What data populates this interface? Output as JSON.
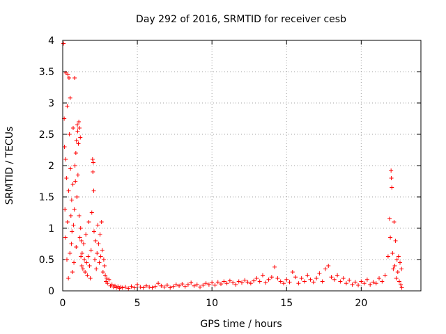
{
  "chart_data": {
    "type": "scatter",
    "title": "Day 292 of 2016, SRMTID for receiver cesb",
    "xlabel": "GPS time / hours",
    "ylabel": "SRMTID / TECUs",
    "xlim": [
      0,
      24
    ],
    "ylim": [
      0,
      4
    ],
    "xticks": [
      0,
      5,
      10,
      15,
      20
    ],
    "xtick_labels": [
      "0",
      "5",
      "10",
      "15",
      "20"
    ],
    "yticks": [
      0,
      0.5,
      1,
      1.5,
      2,
      2.5,
      3,
      3.5,
      4
    ],
    "ytick_labels": [
      "0",
      "0.5",
      "1",
      "1.5",
      "2",
      "2.5",
      "3",
      "3.5",
      "4"
    ],
    "grid": true,
    "marker": "+",
    "series": [
      {
        "name": "SRMTID",
        "color": "#ff0000",
        "points": [
          [
            0.05,
            3.95
          ],
          [
            0.1,
            2.75
          ],
          [
            0.12,
            2.3
          ],
          [
            0.15,
            1.3
          ],
          [
            0.18,
            0.85
          ],
          [
            0.2,
            2.1
          ],
          [
            0.22,
            3.48
          ],
          [
            0.25,
            1.8
          ],
          [
            0.28,
            0.5
          ],
          [
            0.3,
            2.95
          ],
          [
            0.32,
            1.1
          ],
          [
            0.35,
            3.45
          ],
          [
            0.38,
            0.2
          ],
          [
            0.4,
            1.6
          ],
          [
            0.42,
            3.4
          ],
          [
            0.45,
            2.5
          ],
          [
            0.48,
            0.6
          ],
          [
            0.5,
            3.08
          ],
          [
            0.52,
            1.95
          ],
          [
            0.55,
            1.2
          ],
          [
            0.58,
            0.75
          ],
          [
            0.6,
            1.45
          ],
          [
            0.62,
            0.95
          ],
          [
            0.65,
            0.3
          ],
          [
            0.68,
            1.7
          ],
          [
            0.7,
            2.6
          ],
          [
            0.72,
            1.05
          ],
          [
            0.75,
            0.45
          ],
          [
            0.78,
            1.3
          ],
          [
            0.8,
            3.4
          ],
          [
            0.82,
            2.0
          ],
          [
            0.85,
            1.75
          ],
          [
            0.88,
            2.2
          ],
          [
            0.9,
            0.7
          ],
          [
            0.92,
            2.4
          ],
          [
            0.95,
            1.5
          ],
          [
            0.98,
            2.65
          ],
          [
            1.0,
            2.55
          ],
          [
            1.02,
            1.85
          ],
          [
            1.05,
            2.35
          ],
          [
            1.08,
            2.7
          ],
          [
            1.1,
            1.2
          ],
          [
            1.12,
            2.6
          ],
          [
            1.15,
            0.85
          ],
          [
            1.18,
            2.45
          ],
          [
            1.2,
            1.0
          ],
          [
            1.22,
            0.55
          ],
          [
            1.25,
            0.8
          ],
          [
            1.28,
            0.4
          ],
          [
            1.3,
            0.6
          ],
          [
            1.35,
            0.35
          ],
          [
            1.4,
            0.75
          ],
          [
            1.45,
            0.5
          ],
          [
            1.5,
            0.3
          ],
          [
            1.55,
            0.9
          ],
          [
            1.6,
            0.45
          ],
          [
            1.65,
            0.25
          ],
          [
            1.7,
            0.55
          ],
          [
            1.75,
            1.1
          ],
          [
            1.8,
            0.4
          ],
          [
            1.85,
            0.2
          ],
          [
            1.9,
            0.65
          ],
          [
            1.95,
            1.25
          ],
          [
            2.0,
            2.1
          ],
          [
            2.02,
            1.9
          ],
          [
            2.05,
            2.05
          ],
          [
            2.08,
            1.6
          ],
          [
            2.1,
            0.95
          ],
          [
            2.15,
            0.5
          ],
          [
            2.2,
            0.8
          ],
          [
            2.25,
            0.35
          ],
          [
            2.3,
            0.6
          ],
          [
            2.35,
            1.05
          ],
          [
            2.4,
            0.75
          ],
          [
            2.45,
            0.45
          ],
          [
            2.5,
            0.9
          ],
          [
            2.55,
            0.55
          ],
          [
            2.6,
            1.1
          ],
          [
            2.65,
            0.65
          ],
          [
            2.7,
            0.3
          ],
          [
            2.75,
            0.5
          ],
          [
            2.8,
            0.4
          ],
          [
            2.85,
            0.25
          ],
          [
            2.9,
            0.15
          ],
          [
            2.95,
            0.2
          ],
          [
            3.0,
            0.12
          ],
          [
            3.1,
            0.18
          ],
          [
            3.2,
            0.08
          ],
          [
            3.3,
            0.1
          ],
          [
            3.4,
            0.06
          ],
          [
            3.5,
            0.08
          ],
          [
            3.6,
            0.05
          ],
          [
            3.7,
            0.07
          ],
          [
            3.8,
            0.04
          ],
          [
            3.9,
            0.06
          ],
          [
            4.0,
            0.05
          ],
          [
            4.2,
            0.06
          ],
          [
            4.4,
            0.04
          ],
          [
            4.6,
            0.07
          ],
          [
            4.8,
            0.05
          ],
          [
            5.0,
            0.1
          ],
          [
            5.2,
            0.06
          ],
          [
            5.4,
            0.05
          ],
          [
            5.6,
            0.08
          ],
          [
            5.8,
            0.06
          ],
          [
            6.0,
            0.05
          ],
          [
            6.2,
            0.07
          ],
          [
            6.4,
            0.12
          ],
          [
            6.6,
            0.08
          ],
          [
            6.8,
            0.06
          ],
          [
            7.0,
            0.09
          ],
          [
            7.2,
            0.05
          ],
          [
            7.4,
            0.07
          ],
          [
            7.6,
            0.1
          ],
          [
            7.8,
            0.08
          ],
          [
            8.0,
            0.11
          ],
          [
            8.2,
            0.07
          ],
          [
            8.4,
            0.1
          ],
          [
            8.6,
            0.13
          ],
          [
            8.8,
            0.08
          ],
          [
            9.0,
            0.1
          ],
          [
            9.2,
            0.06
          ],
          [
            9.4,
            0.09
          ],
          [
            9.6,
            0.12
          ],
          [
            9.8,
            0.1
          ],
          [
            10.0,
            0.13
          ],
          [
            10.2,
            0.09
          ],
          [
            10.4,
            0.14
          ],
          [
            10.6,
            0.11
          ],
          [
            10.8,
            0.15
          ],
          [
            11.0,
            0.12
          ],
          [
            11.2,
            0.16
          ],
          [
            11.4,
            0.13
          ],
          [
            11.6,
            0.1
          ],
          [
            11.8,
            0.15
          ],
          [
            12.0,
            0.13
          ],
          [
            12.2,
            0.17
          ],
          [
            12.4,
            0.14
          ],
          [
            12.6,
            0.12
          ],
          [
            12.8,
            0.16
          ],
          [
            13.0,
            0.2
          ],
          [
            13.2,
            0.15
          ],
          [
            13.4,
            0.25
          ],
          [
            13.6,
            0.13
          ],
          [
            13.8,
            0.18
          ],
          [
            14.0,
            0.22
          ],
          [
            14.2,
            0.38
          ],
          [
            14.4,
            0.2
          ],
          [
            14.6,
            0.15
          ],
          [
            14.8,
            0.12
          ],
          [
            15.0,
            0.18
          ],
          [
            15.2,
            0.14
          ],
          [
            15.4,
            0.3
          ],
          [
            15.6,
            0.22
          ],
          [
            15.8,
            0.12
          ],
          [
            16.0,
            0.2
          ],
          [
            16.2,
            0.15
          ],
          [
            16.4,
            0.25
          ],
          [
            16.6,
            0.18
          ],
          [
            16.8,
            0.14
          ],
          [
            17.0,
            0.2
          ],
          [
            17.2,
            0.28
          ],
          [
            17.4,
            0.15
          ],
          [
            17.6,
            0.35
          ],
          [
            17.8,
            0.4
          ],
          [
            18.0,
            0.22
          ],
          [
            18.2,
            0.18
          ],
          [
            18.4,
            0.25
          ],
          [
            18.6,
            0.15
          ],
          [
            18.8,
            0.2
          ],
          [
            19.0,
            0.12
          ],
          [
            19.2,
            0.17
          ],
          [
            19.4,
            0.1
          ],
          [
            19.6,
            0.14
          ],
          [
            19.8,
            0.09
          ],
          [
            20.0,
            0.15
          ],
          [
            20.2,
            0.12
          ],
          [
            20.4,
            0.18
          ],
          [
            20.6,
            0.1
          ],
          [
            20.8,
            0.14
          ],
          [
            21.0,
            0.12
          ],
          [
            21.2,
            0.2
          ],
          [
            21.4,
            0.15
          ],
          [
            21.6,
            0.25
          ],
          [
            21.8,
            0.55
          ],
          [
            21.9,
            1.15
          ],
          [
            21.95,
            0.85
          ],
          [
            22.0,
            1.92
          ],
          [
            22.02,
            1.8
          ],
          [
            22.05,
            1.65
          ],
          [
            22.1,
            0.6
          ],
          [
            22.15,
            0.35
          ],
          [
            22.2,
            1.1
          ],
          [
            22.25,
            0.4
          ],
          [
            22.3,
            0.8
          ],
          [
            22.35,
            0.2
          ],
          [
            22.4,
            0.5
          ],
          [
            22.45,
            0.3
          ],
          [
            22.5,
            0.55
          ],
          [
            22.55,
            0.15
          ],
          [
            22.6,
            0.45
          ],
          [
            22.65,
            0.1
          ],
          [
            22.7,
            0.35
          ],
          [
            22.72,
            0.05
          ]
        ]
      }
    ]
  }
}
